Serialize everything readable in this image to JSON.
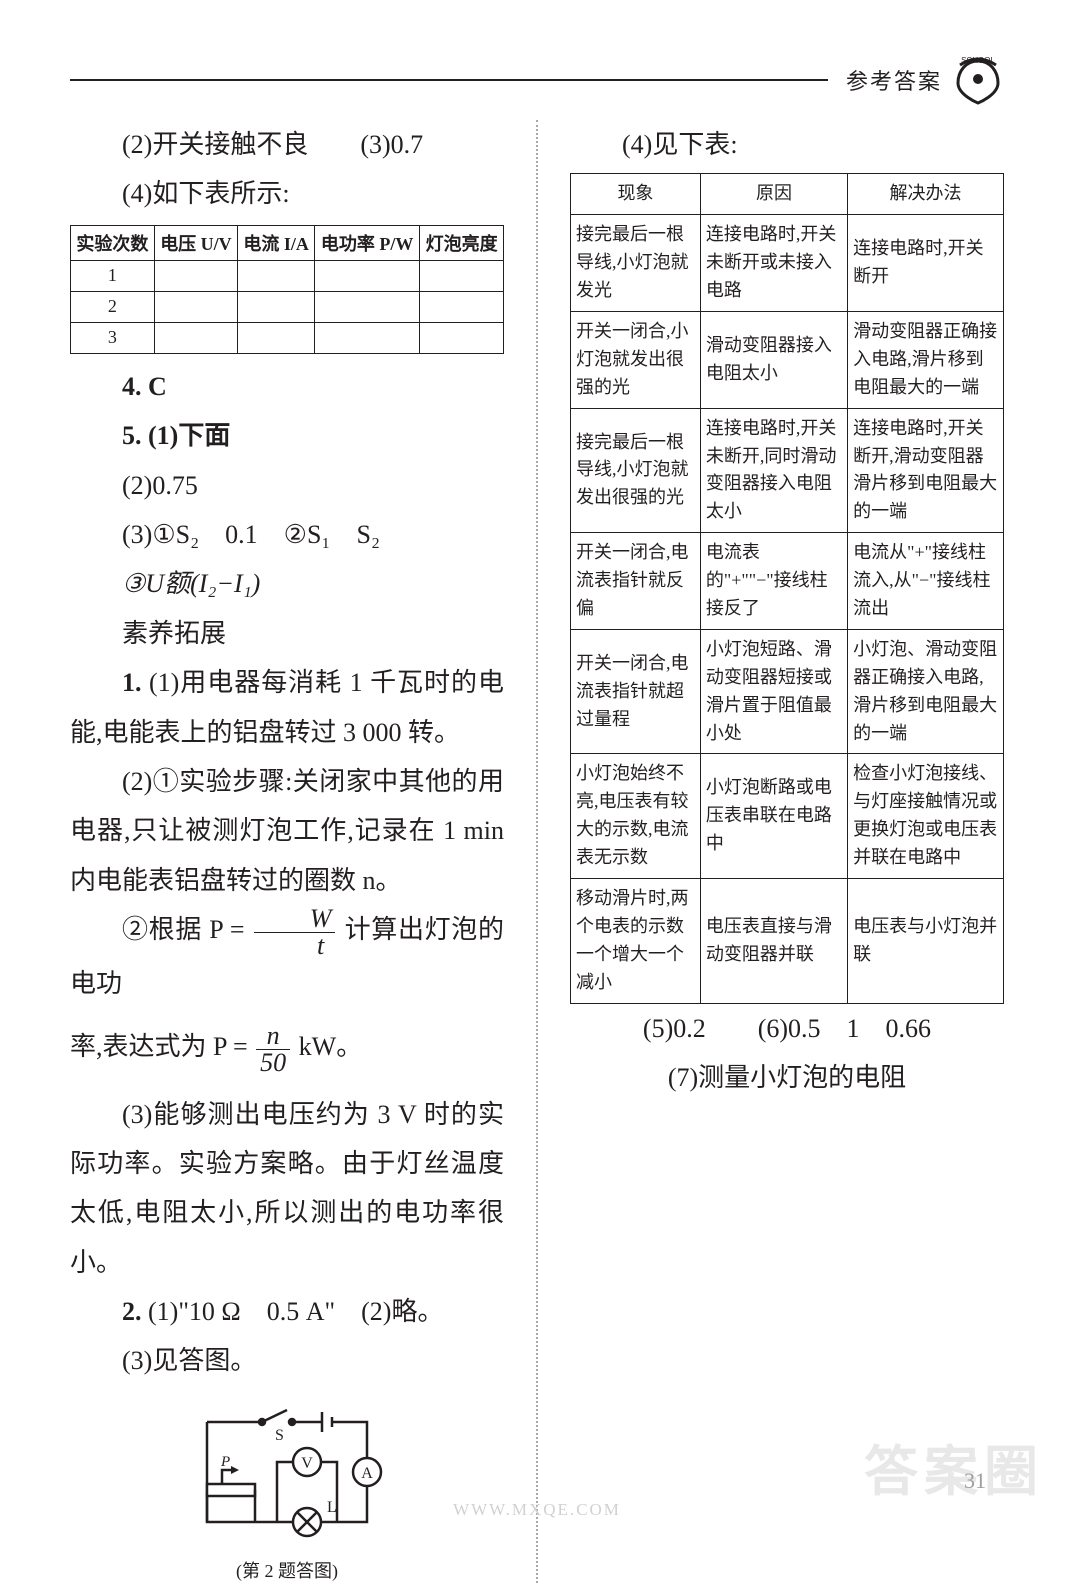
{
  "header": {
    "label": "参考答案"
  },
  "left": {
    "line_2_3": "(2)开关接触不良　　(3)0.7",
    "line_4": "(4)如下表所示:",
    "table4": {
      "headers": [
        "实验次数",
        "电压 U/V",
        "电流 I/A",
        "电功率 P/W",
        "灯泡亮度"
      ],
      "rows": [
        [
          "1",
          "",
          "",
          "",
          ""
        ],
        [
          "2",
          "",
          "",
          "",
          ""
        ],
        [
          "3",
          "",
          "",
          "",
          ""
        ]
      ]
    },
    "ans4": "4. C",
    "ans5_1": "5. (1)下面",
    "ans5_2": "(2)0.75",
    "ans5_3": "(3)①S₂　0.1　②S₁　S₂",
    "ans5_3b": "③U额(I₂−I₁)",
    "sy_heading": "素养拓展",
    "sy1_a": "1. (1)用电器每消耗 1 千瓦时的电能,电能表上的铝盘转过 3 000 转。",
    "sy1_b": "(2)①实验步骤:关闭家中其他的用电器,只让被测灯泡工作,记录在 1 min 内电能表铝盘转过的圈数 n。",
    "sy1_c_pre": "②根据 P = ",
    "sy1_c_frac_top": "W",
    "sy1_c_frac_bot": "t",
    "sy1_c_post": " 计算出灯泡的电功",
    "sy1_c2_pre": "率,表达式为 P = ",
    "sy1_c2_frac_top": "n",
    "sy1_c2_frac_bot": "50",
    "sy1_c2_post": " kW。",
    "sy1_d": "(3)能够测出电压约为 3 V 时的实际功率。实验方案略。由于灯丝温度太低,电阻太小,所以测出的电功率很小。",
    "sy2_a": "2. (1)\"10 Ω　0.5 A\"　(2)略。",
    "sy2_b": "(3)见答图。",
    "circuit_caption": "(第 2 题答图)"
  },
  "right": {
    "line_4": "(4)见下表:",
    "table": {
      "headers": [
        "现象",
        "原因",
        "解决办法"
      ],
      "rows": [
        [
          "接完最后一根导线,小灯泡就发光",
          "连接电路时,开关未断开或未接入电路",
          "连接电路时,开关断开"
        ],
        [
          "开关一闭合,小灯泡就发出很强的光",
          "滑动变阻器接入电阻太小",
          "滑动变阻器正确接入电路,滑片移到电阻最大的一端"
        ],
        [
          "接完最后一根导线,小灯泡就发出很强的光",
          "连接电路时,开关未断开,同时滑动变阻器接入电阻太小",
          "连接电路时,开关断开,滑动变阻器滑片移到电阻最大的一端"
        ],
        [
          "开关一闭合,电流表指针就反偏",
          "电流表的\"+\"\"−\"接线柱接反了",
          "电流从\"+\"接线柱流入,从\"−\"接线柱流出"
        ],
        [
          "开关一闭合,电流表指针就超过量程",
          "小灯泡短路、滑动变阻器短接或滑片置于阻值最小处",
          "小灯泡、滑动变阻器正确接入电路,滑片移到电阻最大的一端"
        ],
        [
          "小灯泡始终不亮,电压表有较大的示数,电流表无示数",
          "小灯泡断路或电压表串联在电路中",
          "检查小灯泡接线、与灯座接触情况或更换灯泡或电压表并联在电路中"
        ],
        [
          "移动滑片时,两个电表的示数一个增大一个减小",
          "电压表直接与滑动变阻器并联",
          "电压表与小灯泡并联"
        ]
      ],
      "col_widths": [
        "30%",
        "34%",
        "36%"
      ]
    },
    "line_5_6": "(5)0.2　　(6)0.5　1　0.66",
    "line_7": "(7)测量小灯泡的电阻"
  },
  "footer": {
    "page_number": "31",
    "watermark": "答案圈",
    "url": "WWW.MXQE.COM"
  },
  "colors": {
    "text": "#231f20",
    "rule": "#231f20",
    "sep": "#a7a9ac",
    "watermark": "#d9d9db",
    "muted": "#9c9ea0"
  }
}
